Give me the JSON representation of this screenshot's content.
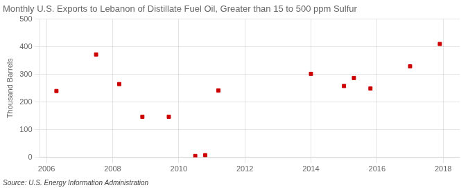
{
  "chart_data": {
    "type": "scatter",
    "title": "Monthly U.S. Exports to Lebanon of Distillate Fuel Oil, Greater than 15 to 500 ppm Sulfur",
    "ylabel": "Thousand Barrels",
    "source": "Source: U.S. Energy Information Administration",
    "x": [
      2006.3,
      2007.5,
      2008.2,
      2008.9,
      2009.7,
      2010.5,
      2010.8,
      2011.2,
      2014.0,
      2015.0,
      2015.3,
      2015.8,
      2017.0,
      2017.9
    ],
    "values": [
      240,
      372,
      265,
      147,
      147,
      5,
      8,
      242,
      302,
      258,
      287,
      249,
      329,
      410
    ],
    "color": "#cc0000",
    "marker": "square",
    "xlim": [
      2005.8,
      2018.5
    ],
    "xticks": [
      2006,
      2008,
      2010,
      2012,
      2014,
      2016,
      2018
    ],
    "ylim": [
      0,
      500
    ],
    "yticks": [
      0,
      100,
      200,
      300,
      400,
      500
    ],
    "grid": true
  }
}
